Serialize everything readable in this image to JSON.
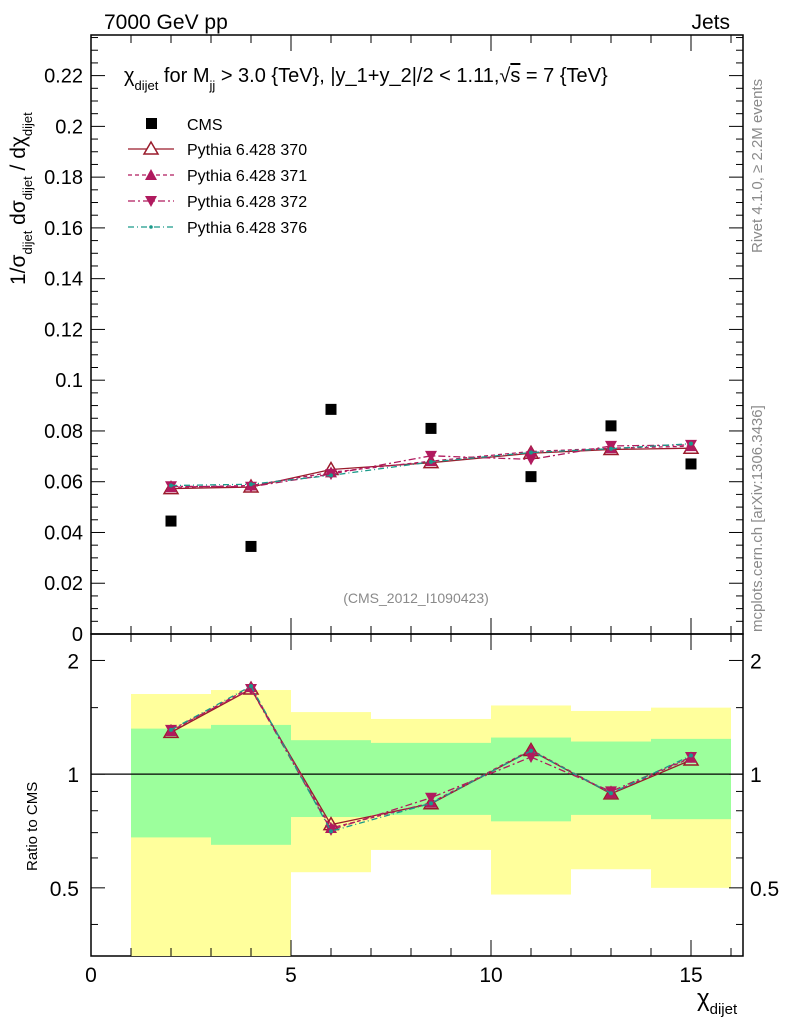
{
  "header": {
    "energy_label": "7000 GeV pp",
    "category_label": "Jets",
    "side_label_top": "Rivet 4.1.0, ≥ 2.2M events",
    "side_label_bottom": "mcplots.cern.ch [arXiv:1306.3436]",
    "analysis_tag": "(CMS_2012_I1090423)"
  },
  "title": {
    "chi": "χ",
    "chi_sub": "dijet",
    "for_m": " for M",
    "m_sub": "jj",
    "rest1": " > 3.0 {TeV}, |y_1+y_2|/2 < 1.11,",
    "sqrt": "√",
    "s": "s",
    "rest2": " = 7 {TeV}"
  },
  "axes": {
    "y_main_label": "1/σ_dijet dσ_dijet / dχ_dijet",
    "y_ratio_label": "Ratio to CMS",
    "x_label_main": "χ",
    "x_label_sub": "dijet",
    "main_ticks": [
      "0",
      "0.02",
      "0.04",
      "0.06",
      "0.08",
      "0.1",
      "0.12",
      "0.14",
      "0.16",
      "0.18",
      "0.2",
      "0.22"
    ],
    "ratio_ticks": [
      "0.5",
      "1",
      "2"
    ],
    "x_ticks": [
      "0",
      "5",
      "10",
      "15"
    ]
  },
  "legend": {
    "entries": [
      "CMS",
      "Pythia 6.428 370",
      "Pythia 6.428 371",
      "Pythia 6.428 372",
      "Pythia 6.428 376"
    ]
  },
  "colors": {
    "cms": "#000000",
    "p370": "#9a1b2b",
    "p371": "#b01a5e",
    "p372": "#b01a5e",
    "p376": "#1a9a8a",
    "band_inner": "#9cff9c",
    "band_outer": "#ffff9c"
  },
  "chart_data": {
    "type": "scatter",
    "title": "χ_dijet for M_jj > 3.0 {TeV}, |y_1+y_2|/2 < 1.11, √s = 7 {TeV}",
    "xlabel": "χ_dijet",
    "ylabel": "1/σ_dijet dσ_dijet / dχ_dijet",
    "xlim": [
      0,
      16.3
    ],
    "ylim": [
      0,
      0.236
    ],
    "ratio_ylim": [
      0.33,
      2.35
    ],
    "x": [
      2,
      4,
      6,
      8.5,
      11,
      13,
      15
    ],
    "bins": [
      [
        1,
        3
      ],
      [
        3,
        5
      ],
      [
        5,
        7
      ],
      [
        7,
        10
      ],
      [
        10,
        12
      ],
      [
        12,
        14
      ],
      [
        14,
        16
      ]
    ],
    "series": [
      {
        "name": "CMS",
        "values": [
          0.0445,
          0.0345,
          0.0885,
          0.081,
          0.062,
          0.082,
          0.067
        ]
      },
      {
        "name": "Pythia 6.428 370",
        "values": [
          0.0573,
          0.0579,
          0.0648,
          0.0675,
          0.0712,
          0.0727,
          0.0732
        ]
      },
      {
        "name": "Pythia 6.428 371",
        "values": [
          0.0578,
          0.0585,
          0.0637,
          0.0681,
          0.0719,
          0.0732,
          0.074
        ]
      },
      {
        "name": "Pythia 6.428 372",
        "values": [
          0.0582,
          0.058,
          0.063,
          0.0702,
          0.0688,
          0.0741,
          0.0745
        ]
      },
      {
        "name": "Pythia 6.428 376",
        "values": [
          0.0585,
          0.059,
          0.0625,
          0.0678,
          0.0715,
          0.073,
          0.075
        ]
      }
    ],
    "ratio_series": [
      {
        "name": "Pythia 6.428 370",
        "values": [
          1.29,
          1.68,
          0.735,
          0.835,
          1.155,
          0.887,
          1.09
        ]
      },
      {
        "name": "Pythia 6.428 371",
        "values": [
          1.3,
          1.7,
          0.72,
          0.84,
          1.16,
          0.89,
          1.105
        ]
      },
      {
        "name": "Pythia 6.428 372",
        "values": [
          1.31,
          1.68,
          0.712,
          0.866,
          1.11,
          0.9,
          1.11
        ]
      },
      {
        "name": "Pythia 6.428 376",
        "values": [
          1.31,
          1.71,
          0.706,
          0.837,
          1.153,
          0.89,
          1.12
        ]
      }
    ],
    "band_inner": [
      [
        0.68,
        1.32
      ],
      [
        0.65,
        1.35
      ],
      [
        0.77,
        1.23
      ],
      [
        0.78,
        1.21
      ],
      [
        0.75,
        1.25
      ],
      [
        0.78,
        1.22
      ],
      [
        0.76,
        1.24
      ]
    ],
    "band_outer": [
      [
        0.33,
        1.63
      ],
      [
        0.33,
        1.67
      ],
      [
        0.55,
        1.46
      ],
      [
        0.63,
        1.4
      ],
      [
        0.48,
        1.52
      ],
      [
        0.56,
        1.47
      ],
      [
        0.5,
        1.5
      ]
    ],
    "reference_line": 1
  }
}
